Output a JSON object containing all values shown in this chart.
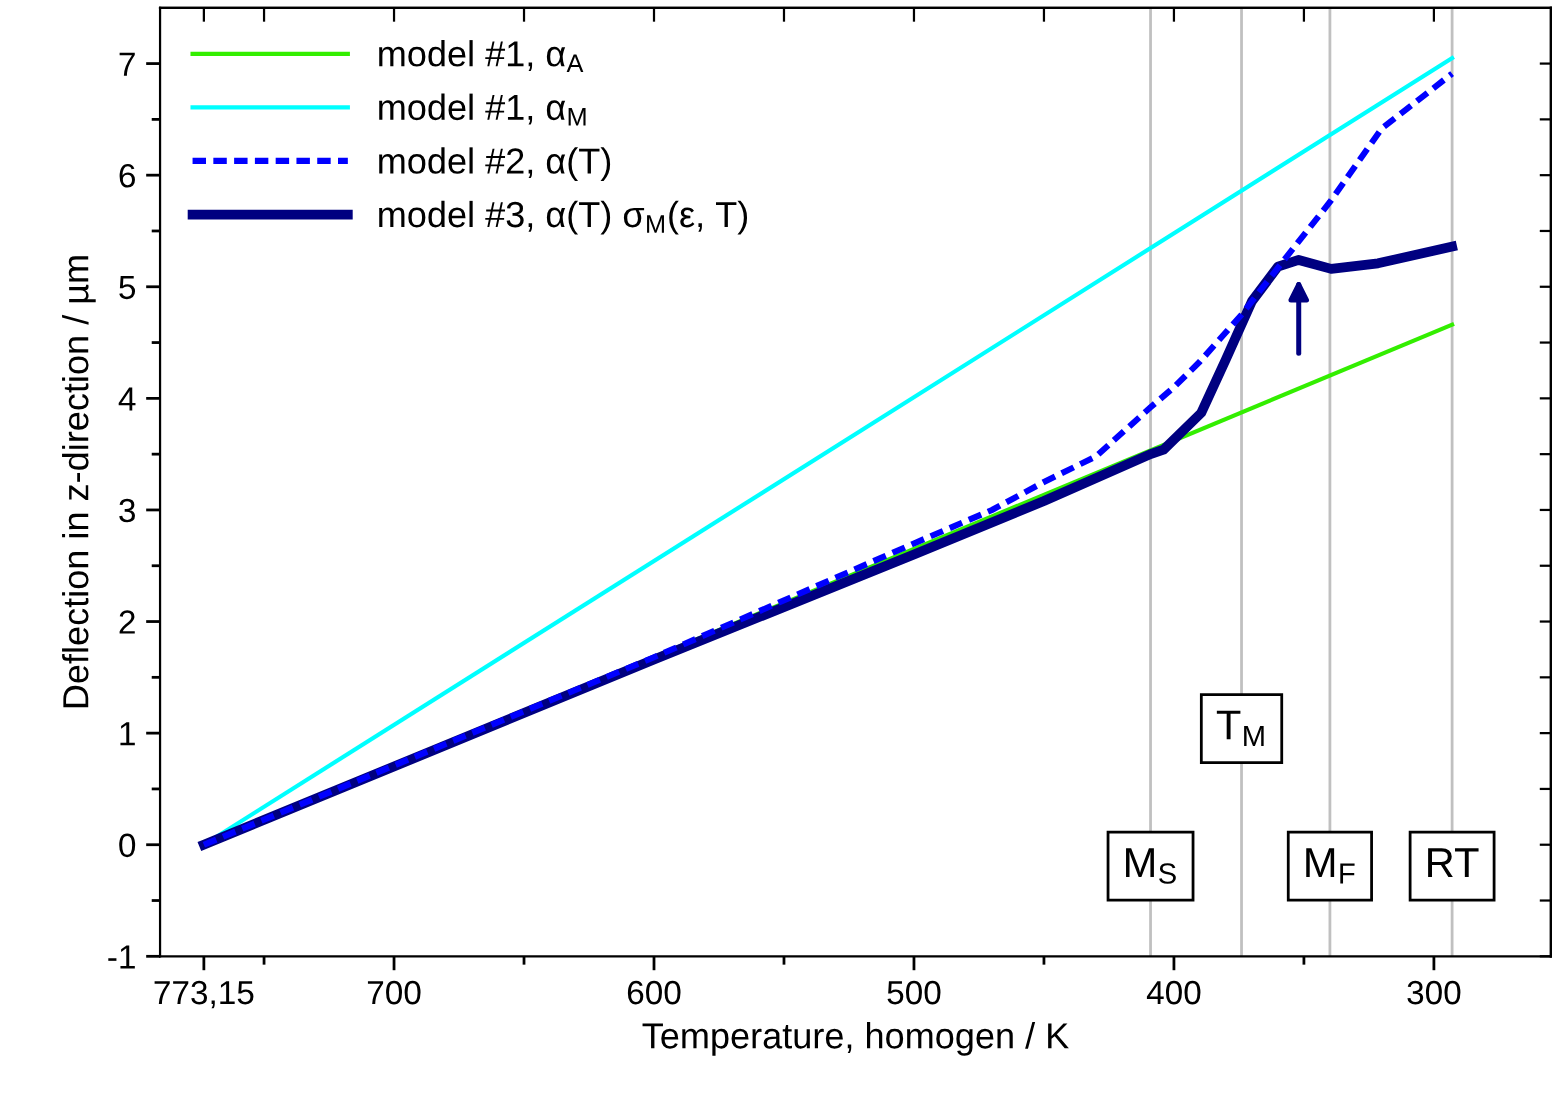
{
  "chart_data": {
    "type": "line",
    "xlabel": "Temperature, homogen / K",
    "ylabel": "Deflection in z-direction / µm",
    "xlim": [
      790,
      255
    ],
    "ylim": [
      -1,
      7.5
    ],
    "xticks": [
      {
        "value": 773.15,
        "label": "773,15"
      },
      {
        "value": 750,
        "label": null
      },
      700,
      {
        "value": 650,
        "label": null
      },
      600,
      {
        "value": 550,
        "label": null
      },
      500,
      {
        "value": 450,
        "label": null
      },
      400,
      {
        "value": 350,
        "label": null
      },
      300
    ],
    "yticks": [
      -1,
      {
        "value": -0.5,
        "label": null
      },
      0,
      {
        "value": 0.5,
        "label": null
      },
      1,
      {
        "value": 1.5,
        "label": null
      },
      2,
      {
        "value": 2.5,
        "label": null
      },
      3,
      {
        "value": 3.5,
        "label": null
      },
      4,
      {
        "value": 4.5,
        "label": null
      },
      5,
      {
        "value": 5.5,
        "label": null
      },
      6,
      {
        "value": 6.5,
        "label": null
      },
      7
    ],
    "grid": false,
    "legend": "top left",
    "series": [
      {
        "name": "model #1, α$_{A}$",
        "color": "#33ee00",
        "line_style": "solid",
        "x": [
          773.15,
          293
        ],
        "values": [
          0,
          4.66
        ]
      },
      {
        "name": "model #1, α$_{M}$",
        "color": "#00ffff",
        "line_style": "solid",
        "x": [
          773.15,
          293
        ],
        "values": [
          0,
          7.05
        ]
      },
      {
        "name": "model #2, α(T)",
        "color": "#0000ff",
        "line_style": "dashed",
        "x": [
          773.15,
          600,
          500,
          470,
          450,
          430,
          409,
          400,
          390,
          374,
          360,
          340,
          320,
          293
        ],
        "values": [
          0,
          1.68,
          2.7,
          3.0,
          3.25,
          3.48,
          3.92,
          4.1,
          4.33,
          4.75,
          5.17,
          5.76,
          6.42,
          6.91
        ]
      },
      {
        "name": "model #3, α(T) σ$_{M}$(ε, T)",
        "color": "#000080",
        "line_style": "solid",
        "x": [
          773.15,
          600,
          500,
          450,
          409,
          404,
          389.5,
          380,
          370,
          360,
          352,
          339.5,
          321.5,
          293
        ],
        "values": [
          0,
          1.66,
          2.6,
          3.08,
          3.5,
          3.54,
          3.87,
          4.35,
          4.87,
          5.18,
          5.24,
          5.16,
          5.21,
          5.36
        ]
      }
    ],
    "ref_lines": [
      {
        "axis": "x",
        "value": 409,
        "label": "M$_{S}$",
        "color": "#c0c0c0"
      },
      {
        "axis": "x",
        "value": 374,
        "label": "T$_{M}$",
        "color": "#c0c0c0"
      },
      {
        "axis": "x",
        "value": 340,
        "label": "M$_{F}$",
        "color": "#c0c0c0"
      },
      {
        "axis": "x",
        "value": 293,
        "label": "RT",
        "color": "#c0c0c0"
      }
    ]
  }
}
